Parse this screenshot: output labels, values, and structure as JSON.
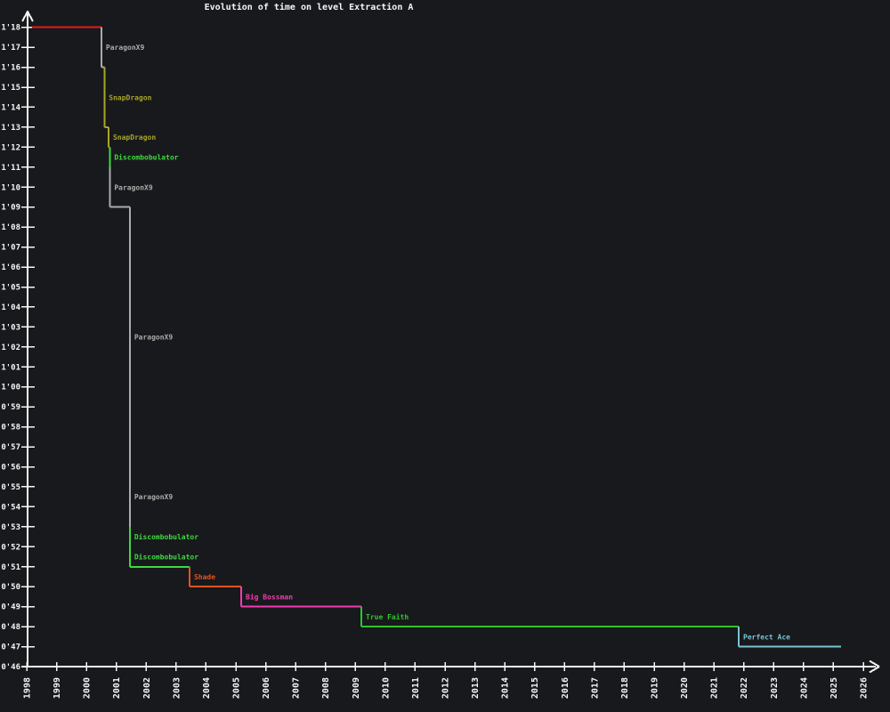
{
  "title": "Evolution of time on level Extraction A",
  "colors": {
    "background": "#18191c",
    "axis": "#f5f5f5",
    "title_text": "#f5f5f5",
    "paragonx9": "#ababab",
    "snapdragon": "#a6a629",
    "discombobulator": "#3ddc3d",
    "shade": "#e0541f",
    "big_bossman": "#f23cb2",
    "true_faith": "#2fc42f",
    "perfect_ace": "#79c4d4",
    "first_record": "#e31a1a"
  },
  "chart_data": {
    "type": "line",
    "subtype": "step-record-progression",
    "title": "Evolution of time on level Extraction A",
    "xlabel": "",
    "ylabel": "",
    "grid": false,
    "legend": "none",
    "x_axis": {
      "min": 1998,
      "max": 2026,
      "tick_label_rotation_deg": -90,
      "tick_labels": [
        "1998",
        "1999",
        "2000",
        "2001",
        "2002",
        "2003",
        "2004",
        "2005",
        "2006",
        "2007",
        "2008",
        "2009",
        "2010",
        "2011",
        "2012",
        "2013",
        "2014",
        "2015",
        "2016",
        "2017",
        "2018",
        "2019",
        "2020",
        "2021",
        "2022",
        "2023",
        "2024",
        "2025",
        "2026"
      ]
    },
    "y_axis": {
      "min": 46,
      "max": 78,
      "unit": "time m'ss (seconds)",
      "tick_labels": [
        "0'46",
        "0'47",
        "0'48",
        "0'49",
        "0'50",
        "0'51",
        "0'52",
        "0'53",
        "0'54",
        "0'55",
        "0'56",
        "0'57",
        "0'58",
        "0'59",
        "1'00",
        "1'01",
        "1'02",
        "1'03",
        "1'04",
        "1'05",
        "1'06",
        "1'07",
        "1'08",
        "1'09",
        "1'10",
        "1'11",
        "1'12",
        "1'13",
        "1'14",
        "1'15",
        "1'16",
        "1'17",
        "1'18"
      ]
    },
    "records": [
      {
        "player": "",
        "time": "1'18",
        "time_s": 78,
        "start_year": 1998.18,
        "end_year": 2000.5,
        "color": "#e31a1a"
      },
      {
        "player": "ParagonX9",
        "time": "1'16",
        "time_s": 76,
        "start_year": 2000.5,
        "end_year": 2000.6,
        "color": "#ababab"
      },
      {
        "player": "SnapDragon",
        "time": "1'13",
        "time_s": 73,
        "start_year": 2000.6,
        "end_year": 2000.74,
        "color": "#a6a629"
      },
      {
        "player": "SnapDragon",
        "time": "1'12",
        "time_s": 72,
        "start_year": 2000.74,
        "end_year": 2000.78,
        "color": "#a6a629"
      },
      {
        "player": "Discombobulator",
        "time": "1'11",
        "time_s": 71,
        "start_year": 2000.78,
        "end_year": 2000.78,
        "color": "#3ddc3d"
      },
      {
        "player": "ParagonX9",
        "time": "1'09",
        "time_s": 69,
        "start_year": 2000.78,
        "end_year": 2001.45,
        "color": "#ababab"
      },
      {
        "player": "ParagonX9",
        "time": "0'56",
        "time_s": 56,
        "start_year": 2001.45,
        "end_year": 2001.45,
        "color": "#ababab"
      },
      {
        "player": "ParagonX9",
        "time": "0'53",
        "time_s": 53,
        "start_year": 2001.45,
        "end_year": 2001.45,
        "color": "#ababab"
      },
      {
        "player": "Discombobulator",
        "time": "0'52",
        "time_s": 52,
        "start_year": 2001.45,
        "end_year": 2001.45,
        "color": "#3ddc3d"
      },
      {
        "player": "Discombobulator",
        "time": "0'51",
        "time_s": 51,
        "start_year": 2001.45,
        "end_year": 2003.45,
        "color": "#3ddc3d"
      },
      {
        "player": "Shade",
        "time": "0'50",
        "time_s": 50,
        "start_year": 2003.45,
        "end_year": 2005.18,
        "color": "#e0541f"
      },
      {
        "player": "Big Bossman",
        "time": "0'49",
        "time_s": 49,
        "start_year": 2005.18,
        "end_year": 2009.2,
        "color": "#f23cb2"
      },
      {
        "player": "True Faith",
        "time": "0'48",
        "time_s": 48,
        "start_year": 2009.2,
        "end_year": 2021.83,
        "color": "#2fc42f"
      },
      {
        "player": "Perfect Ace",
        "time": "0'47",
        "time_s": 47,
        "start_year": 2021.83,
        "end_year": 2025.25,
        "color": "#79c4d4"
      }
    ]
  }
}
